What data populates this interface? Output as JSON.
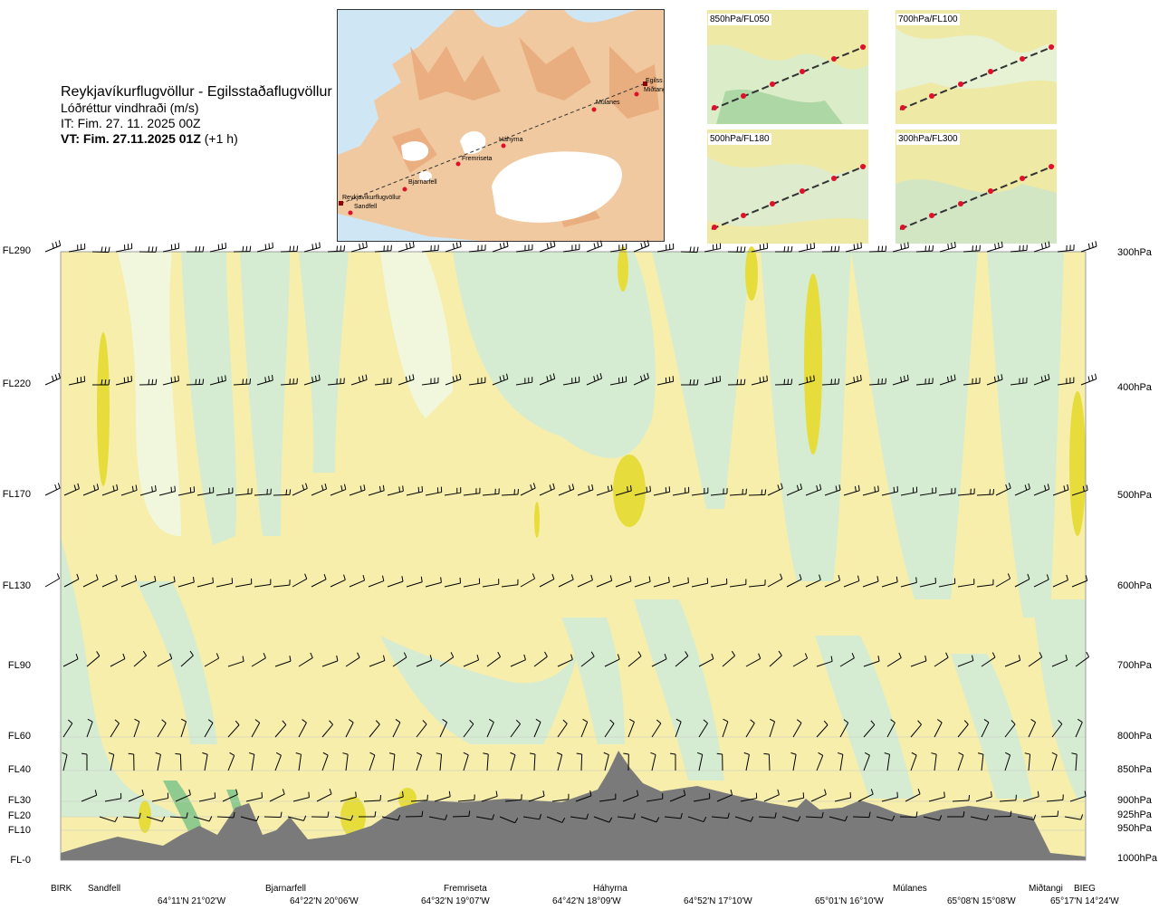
{
  "header": {
    "title": "Reykjavíkurflugvöllur - Egilsstaðaflugvöllur",
    "subtitle": "Lóðréttur vindhraði (m/s)",
    "issue_time": "IT: Fim. 27. 11. 2025 00Z",
    "valid_time_bold": "VT: Fim. 27.11.2025 01Z",
    "valid_time_suffix": "(+1 h)"
  },
  "map": {
    "places": [
      "Reykjavíkurflugvöllur",
      "Sandfell",
      "Bjarnarfell",
      "Fremriseta",
      "Háhyrna",
      "Múlanes",
      "Miðtangi",
      "Egilss"
    ],
    "colors": {
      "sea": "#cfe6f5",
      "land": "#f1c9a0",
      "ridge": "#e8a878",
      "glacier": "#ffffff",
      "route": "#333333",
      "point": "#e0102a"
    }
  },
  "thumbnails": [
    {
      "label": "850hPa/FL050"
    },
    {
      "label": "700hPa/FL100"
    },
    {
      "label": "500hPa/FL180"
    },
    {
      "label": "300hPa/FL300"
    }
  ],
  "chart_data": {
    "type": "heatmap",
    "title": "Lóðréttur vindhraði (m/s)",
    "y_left_labels": [
      "FL290",
      "FL220",
      "FL170",
      "FL130",
      "FL90",
      "FL60",
      "FL40",
      "FL30",
      "FL20",
      "FL10",
      "FL-0"
    ],
    "y_right_labels": [
      "300hPa",
      "400hPa",
      "500hPa",
      "600hPa",
      "700hPa",
      "800hPa",
      "850hPa",
      "900hPa",
      "925hPa",
      "950hPa",
      "1000hPa"
    ],
    "pressure_levels_hpa": [
      300,
      400,
      500,
      600,
      700,
      800,
      850,
      900,
      925,
      950,
      1000
    ],
    "ylim_hpa": [
      1000,
      300
    ],
    "locations": [
      "BIRK",
      "Sandfell",
      "Bjarnarfell",
      "Fremriseta",
      "Háhyrna",
      "Múlanes",
      "Miðtangi",
      "BIEG"
    ],
    "coordinates": [
      "64°11'N 21°02'W",
      "64°22'N 20°06'W",
      "64°32'N 19°07'W",
      "64°42'N 18°09'W",
      "64°52'N 17°10'W",
      "65°01'N 16°10'W",
      "65°08'N 15°08'W",
      "65°17'N 14°24'W"
    ],
    "colors": {
      "background": "#f6eeaa",
      "updraft_weak": "#f0f7dc",
      "updraft_med": "#d6ecd2",
      "updraft_strong": "#8fca8f",
      "down_strong": "#e6dd3c",
      "down_extreme": "#f0a030",
      "terrain": "#7a7a7a"
    },
    "grid": true
  }
}
